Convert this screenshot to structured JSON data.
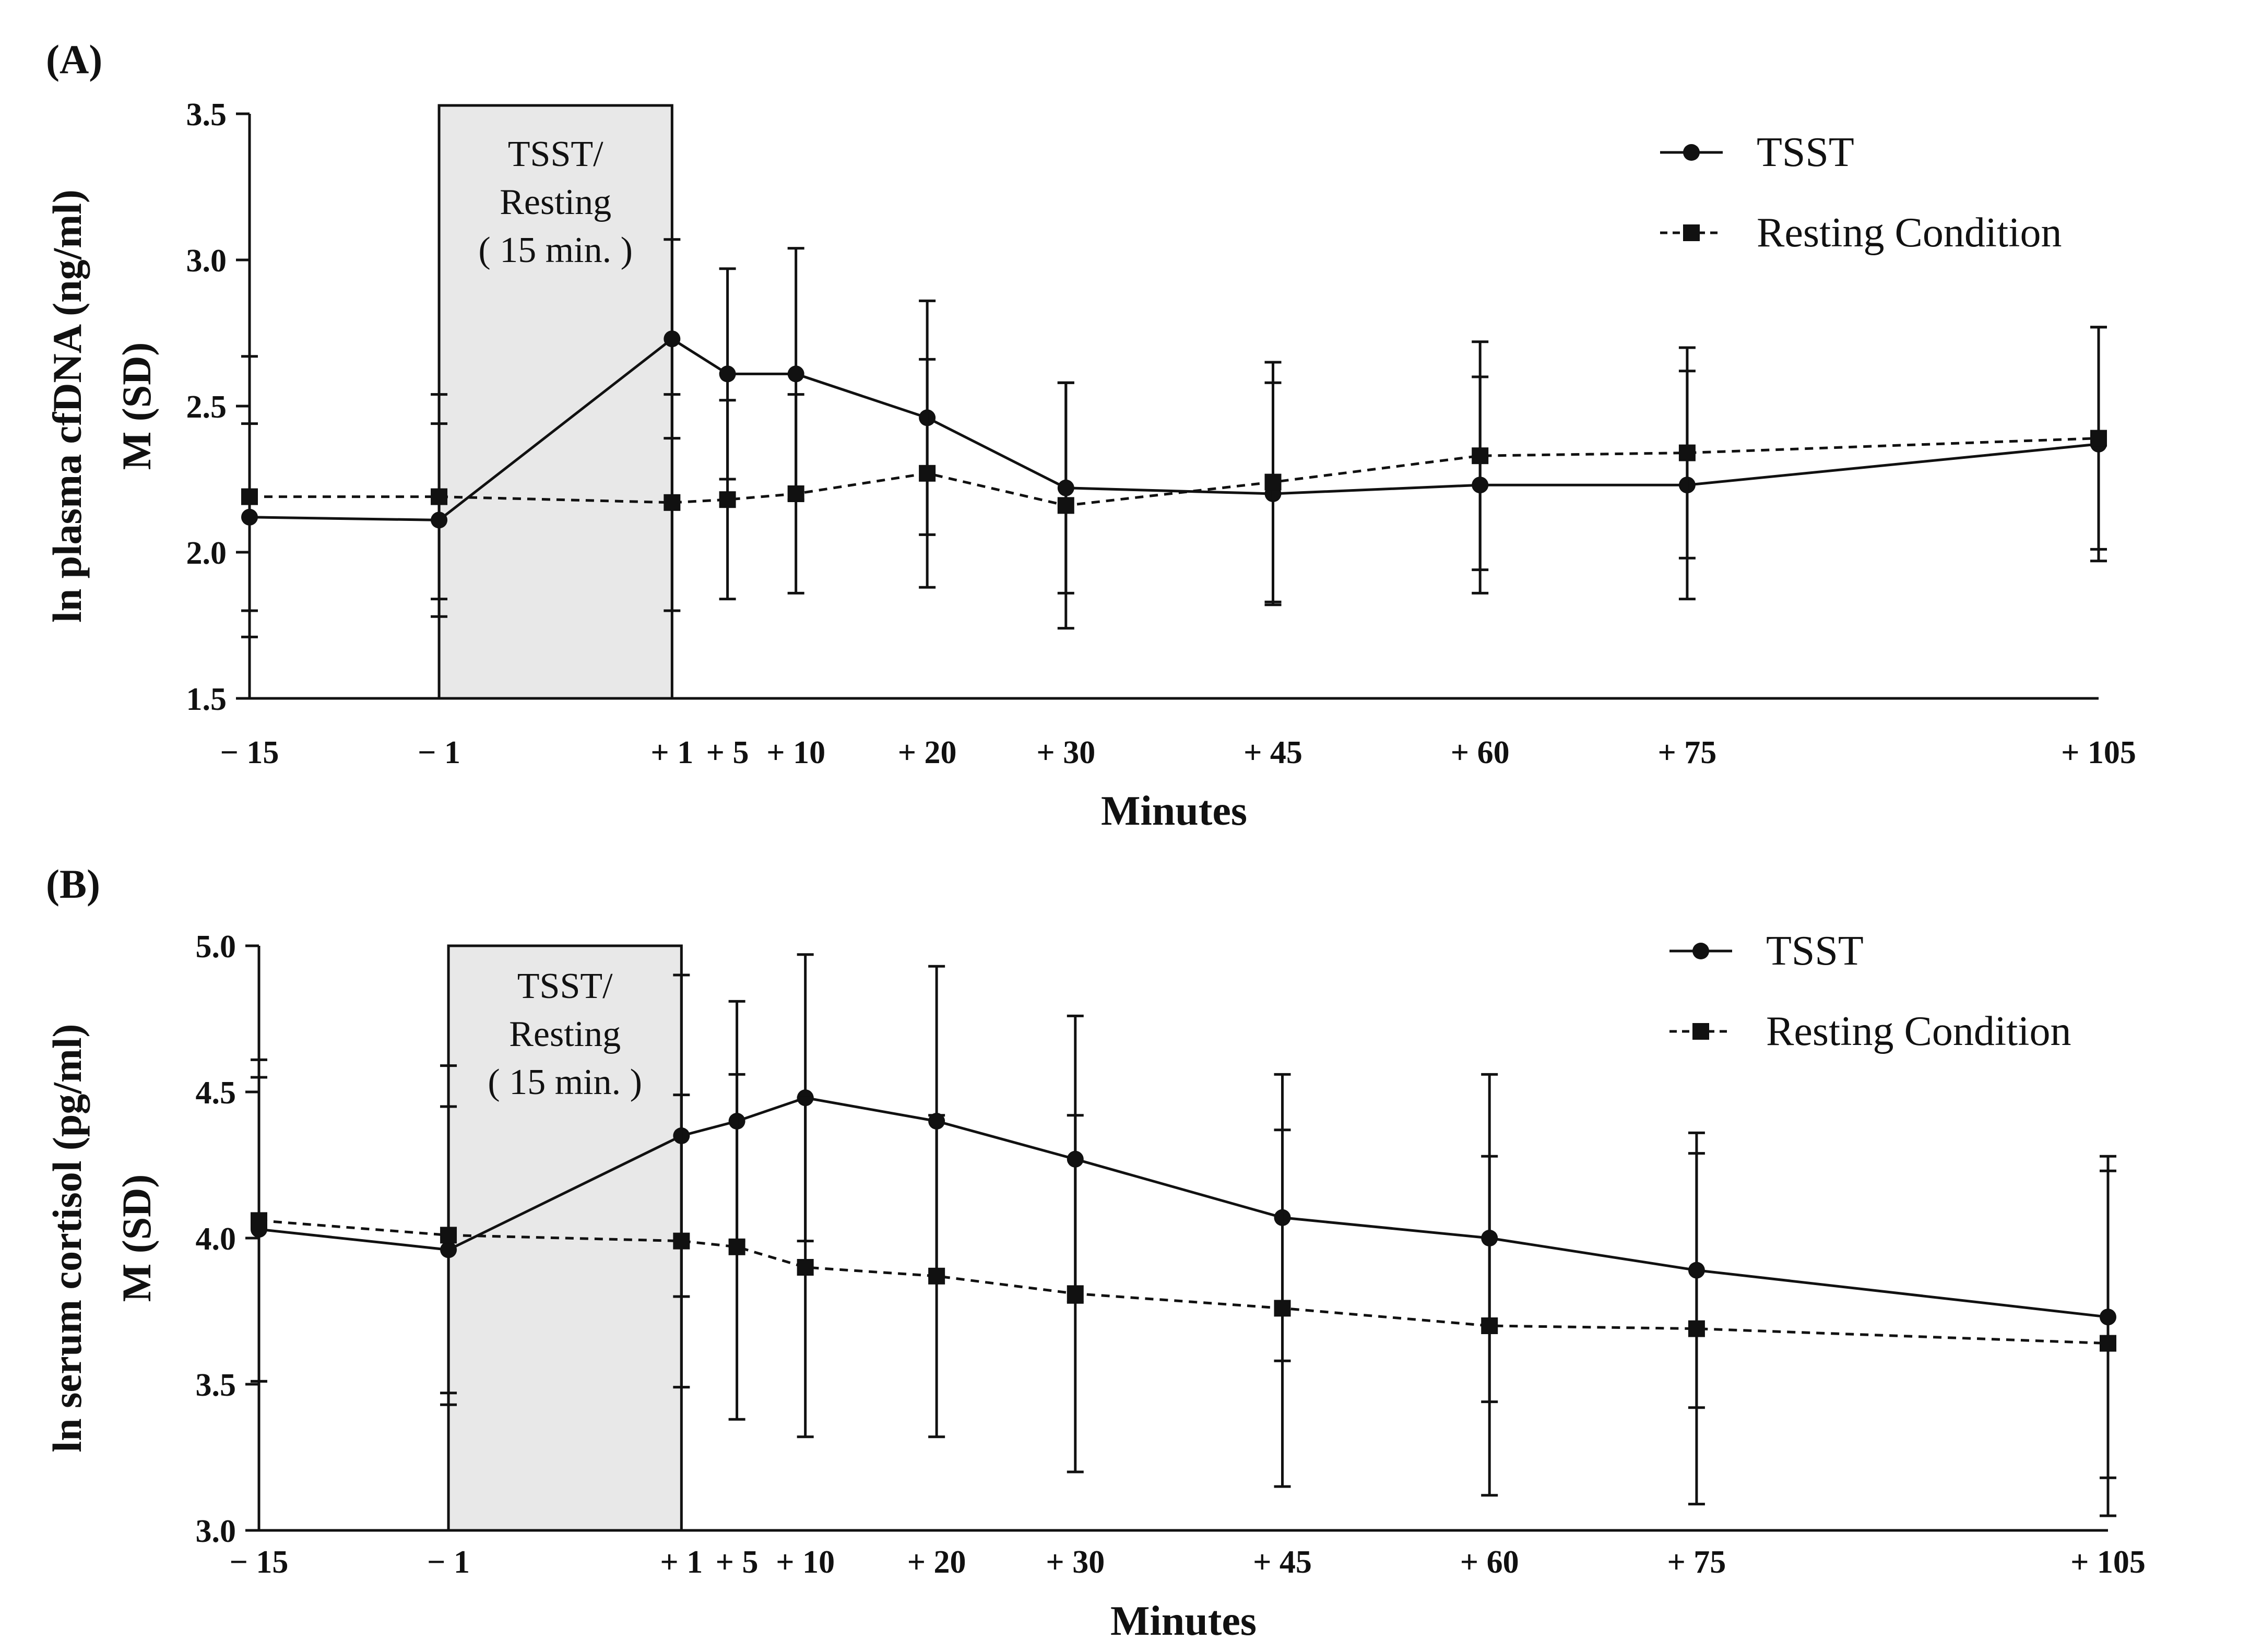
{
  "chart_data": [
    {
      "type": "line",
      "panel_label": "(A)",
      "xlabel": "Minutes",
      "ylabel_line1": "ln plasma cfDNA (ng/ml)",
      "ylabel_line2": "M (SD)",
      "ylim": [
        1.5,
        3.5
      ],
      "y_ticks": [
        "1.5",
        "2.0",
        "2.5",
        "3.0",
        "3.5"
      ],
      "x": [
        -15,
        -1,
        1,
        5,
        10,
        20,
        30,
        45,
        60,
        75,
        105
      ],
      "x_tick_labels": [
        "− 15",
        "− 1",
        "+ 1",
        "+ 5",
        "+ 10",
        "+ 20",
        "+ 30",
        "+ 45",
        "+ 60",
        "+ 75",
        "+ 105"
      ],
      "box_label_lines": [
        "TSST/",
        "Resting",
        "( 15 min. )"
      ],
      "box_range": [
        -1,
        1
      ],
      "series": [
        {
          "name": "TSST",
          "marker": "circle",
          "line_style": "solid",
          "values": [
            2.12,
            2.11,
            2.73,
            2.61,
            2.61,
            2.46,
            2.22,
            2.2,
            2.23,
            2.23,
            2.37
          ],
          "sd": [
            0.32,
            0.33,
            0.34,
            0.36,
            0.43,
            0.4,
            0.36,
            0.38,
            0.37,
            0.39,
            0.4
          ]
        },
        {
          "name": "Resting Condition",
          "marker": "square",
          "line_style": "dashed",
          "values": [
            2.19,
            2.19,
            2.17,
            2.18,
            2.2,
            2.27,
            2.16,
            2.24,
            2.33,
            2.34,
            2.39
          ],
          "sd": [
            0.48,
            0.35,
            0.37,
            0.34,
            0.34,
            0.39,
            0.42,
            0.41,
            0.39,
            0.36,
            0.38
          ]
        }
      ],
      "legend_position": "top-right"
    },
    {
      "type": "line",
      "panel_label": "(B)",
      "xlabel": "Minutes",
      "ylabel_line1": "ln serum cortisol (pg/ml)",
      "ylabel_line2": "M (SD)",
      "ylim": [
        3.0,
        5.0
      ],
      "y_ticks": [
        "3.0",
        "3.5",
        "4.0",
        "4.5",
        "5.0"
      ],
      "x": [
        -15,
        -1,
        1,
        5,
        10,
        20,
        30,
        45,
        60,
        75,
        105
      ],
      "x_tick_labels": [
        "− 15",
        "− 1",
        "+ 1",
        "+ 5",
        "+ 10",
        "+ 20",
        "+ 30",
        "+ 45",
        "+ 60",
        "+ 75",
        "+ 105"
      ],
      "box_label_lines": [
        "TSST/",
        "Resting",
        "( 15 min. )"
      ],
      "box_range": [
        -1,
        1
      ],
      "series": [
        {
          "name": "TSST",
          "marker": "circle",
          "line_style": "solid",
          "values": [
            4.03,
            3.96,
            4.35,
            4.4,
            4.48,
            4.4,
            4.27,
            4.07,
            4.0,
            3.89,
            3.73
          ],
          "sd": [
            0.52,
            0.49,
            0.55,
            0.41,
            0.49,
            0.53,
            0.49,
            0.49,
            0.56,
            0.47,
            0.55
          ]
        },
        {
          "name": "Resting Condition",
          "marker": "square",
          "line_style": "dashed",
          "values": [
            4.06,
            4.01,
            3.99,
            3.97,
            3.9,
            3.87,
            3.81,
            3.76,
            3.7,
            3.69,
            3.64
          ],
          "sd": [
            0.55,
            0.58,
            0.5,
            0.59,
            0.58,
            0.55,
            0.61,
            0.61,
            0.58,
            0.6,
            0.59
          ]
        }
      ],
      "legend_position": "top-right"
    }
  ]
}
